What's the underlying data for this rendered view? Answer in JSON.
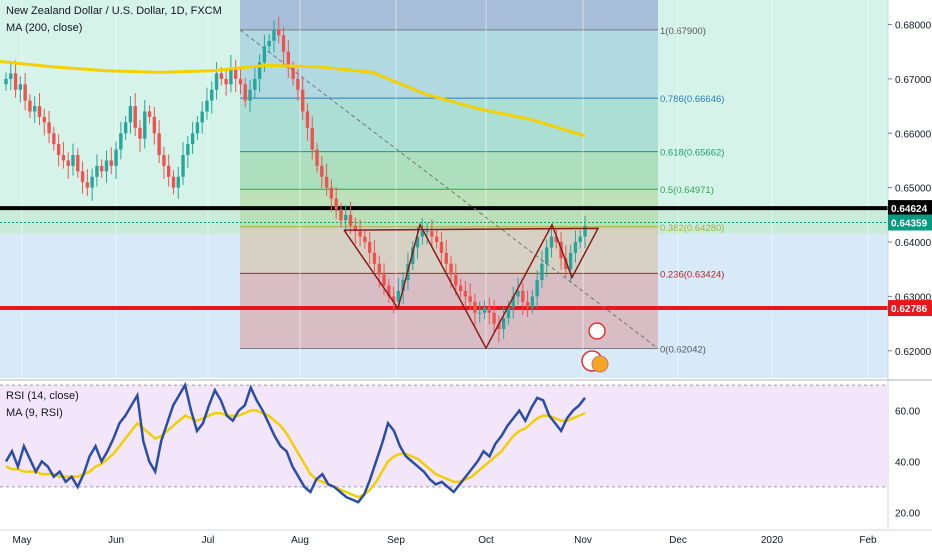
{
  "header": {
    "title": "New Zealand Dollar / U.S. Dollar, 1D, FXCM",
    "ma_label": "MA (200, close)"
  },
  "rsi_panel": {
    "title": "RSI (14, close)",
    "ma_label": "MA (9, RSI)",
    "y_ticks": [
      "60.00",
      "40.00",
      "20.00"
    ]
  },
  "colors": {
    "up": "#26a69a",
    "down": "#ef5350",
    "ma": "#f5d000",
    "rsi": "#2a4ea6",
    "rsi_ma": "#f2d000",
    "black_level": "#000000",
    "red_level": "#e6161c",
    "pattern": "#8b1a1a"
  },
  "chart_data": {
    "type": "candlestick",
    "symbol": "New Zealand Dollar / U.S. Dollar",
    "timeframe": "1D",
    "ylim": [
      0.615,
      0.6845
    ],
    "y_ticks": [
      "0.68000",
      "0.67000",
      "0.66000",
      "0.65000",
      "0.64000",
      "0.63000",
      "0.62000"
    ],
    "x_ticks": [
      "May",
      "Jun",
      "Jul",
      "Aug",
      "Sep",
      "Oct",
      "Nov",
      "Dec",
      "2020",
      "Feb"
    ],
    "price_labels": [
      {
        "text": "0.64624",
        "color": "#000000"
      },
      {
        "text": "0.64359",
        "color": "#089981"
      },
      {
        "text": "0.62786",
        "color": "#e6161c"
      }
    ],
    "horizontal_levels": [
      {
        "name": "black-level",
        "value": 0.64624
      },
      {
        "name": "red-level",
        "value": 0.62786
      }
    ],
    "fibonacci": [
      {
        "label": "1(0.67900)",
        "ratio": 1,
        "value": 0.679
      },
      {
        "label": "0.786(0.66646)",
        "ratio": 0.786,
        "value": 0.66646
      },
      {
        "label": "0.618(0.65662)",
        "ratio": 0.618,
        "value": 0.65662
      },
      {
        "label": "0.5(0.64971)",
        "ratio": 0.5,
        "value": 0.64971
      },
      {
        "label": "0.382(0.64280)",
        "ratio": 0.382,
        "value": 0.6428
      },
      {
        "label": "0.236(0.63424)",
        "ratio": 0.236,
        "value": 0.63424
      },
      {
        "label": "0(0.62042)",
        "ratio": 0,
        "value": 0.62042
      }
    ],
    "ma200": [
      0.6732,
      0.6722,
      0.6715,
      0.6712,
      0.6715,
      0.6725,
      0.6722,
      0.6712,
      0.6672,
      0.6645,
      0.6625,
      0.6595
    ],
    "closes": [
      0.67,
      0.671,
      0.668,
      0.669,
      0.666,
      0.664,
      0.665,
      0.663,
      0.662,
      0.66,
      0.658,
      0.656,
      0.655,
      0.654,
      0.656,
      0.653,
      0.651,
      0.65,
      0.652,
      0.654,
      0.653,
      0.655,
      0.654,
      0.657,
      0.66,
      0.662,
      0.665,
      0.661,
      0.659,
      0.664,
      0.663,
      0.66,
      0.656,
      0.654,
      0.652,
      0.65,
      0.652,
      0.656,
      0.658,
      0.66,
      0.662,
      0.664,
      0.666,
      0.668,
      0.671,
      0.67,
      0.669,
      0.672,
      0.67,
      0.669,
      0.666,
      0.668,
      0.67,
      0.673,
      0.676,
      0.677,
      0.679,
      0.678,
      0.675,
      0.672,
      0.67,
      0.668,
      0.664,
      0.661,
      0.657,
      0.654,
      0.652,
      0.65,
      0.648,
      0.646,
      0.644,
      0.645,
      0.643,
      0.642,
      0.641,
      0.64,
      0.638,
      0.636,
      0.634,
      0.632,
      0.63,
      0.629,
      0.631,
      0.633,
      0.636,
      0.639,
      0.641,
      0.642,
      0.642,
      0.641,
      0.64,
      0.638,
      0.636,
      0.634,
      0.632,
      0.631,
      0.63,
      0.629,
      0.627,
      0.627,
      0.628,
      0.627,
      0.625,
      0.624,
      0.626,
      0.628,
      0.63,
      0.631,
      0.629,
      0.628,
      0.63,
      0.633,
      0.636,
      0.639,
      0.641,
      0.64,
      0.637,
      0.635,
      0.638,
      0.64,
      0.641,
      0.643
    ],
    "rsi": {
      "ylim": [
        17,
        72
      ],
      "overbought": 70,
      "oversold": 30,
      "values": [
        40,
        44,
        38,
        46,
        41,
        36,
        40,
        38,
        34,
        36,
        32,
        34,
        30,
        35,
        42,
        46,
        40,
        44,
        49,
        55,
        58,
        62,
        66,
        48,
        40,
        36,
        48,
        55,
        62,
        66,
        70,
        60,
        52,
        55,
        62,
        68,
        64,
        58,
        56,
        60,
        62,
        69,
        64,
        60,
        55,
        50,
        46,
        44,
        38,
        34,
        30,
        28,
        33,
        35,
        31,
        30,
        28,
        26,
        25,
        24,
        27,
        33,
        40,
        47,
        55,
        52,
        46,
        42,
        40,
        38,
        36,
        33,
        31,
        32,
        30,
        28,
        31,
        34,
        37,
        40,
        44,
        42,
        47,
        50,
        54,
        57,
        60,
        56,
        61,
        65,
        64,
        58,
        55,
        52,
        57,
        60,
        62,
        65
      ],
      "ma": [
        38,
        37,
        37,
        36,
        36,
        36,
        35,
        35,
        35,
        34,
        34,
        34,
        34,
        35,
        36,
        38,
        39,
        41,
        43,
        46,
        49,
        52,
        55,
        53,
        51,
        49,
        50,
        52,
        54,
        56,
        58,
        57,
        56,
        57,
        58,
        59,
        59,
        58,
        58,
        58,
        59,
        60,
        60,
        59,
        58,
        56,
        54,
        51,
        47,
        43,
        39,
        35,
        33,
        32,
        31,
        30,
        29,
        28,
        27,
        26,
        27,
        29,
        32,
        36,
        40,
        42,
        43,
        43,
        42,
        41,
        39,
        37,
        35,
        34,
        33,
        32,
        32,
        33,
        34,
        36,
        38,
        40,
        42,
        44,
        47,
        50,
        52,
        53,
        55,
        57,
        58,
        58,
        57,
        56,
        56,
        57,
        58,
        59
      ]
    }
  }
}
